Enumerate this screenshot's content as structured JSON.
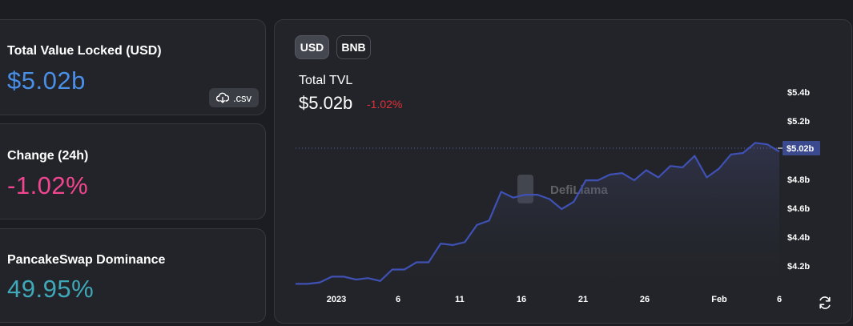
{
  "stats": {
    "tvl": {
      "label": "Total Value Locked (USD)",
      "value": "$5.02b",
      "color": "#4a8fe7",
      "csv_label": ".csv"
    },
    "change": {
      "label": "Change (24h)",
      "value": "-1.02%",
      "color": "#f0458f"
    },
    "dominance": {
      "label": "PancakeSwap Dominance",
      "value": "49.95%",
      "color": "#3fa9b9"
    }
  },
  "chart": {
    "toggles": {
      "usd": "USD",
      "bnb": "BNB"
    },
    "selected_toggle": "USD",
    "title": "Total TVL",
    "value": "$5.02b",
    "change": "-1.02%",
    "change_color": "#e0303a",
    "watermark": "DefiLlama",
    "current_marker_label": "$5.02b",
    "refresh_icon": "refresh-icon",
    "line_color": "#3f51b5"
  },
  "chart_data": {
    "type": "area",
    "x_tick_labels": [
      "2023",
      "6",
      "11",
      "16",
      "21",
      "26",
      "Feb",
      "6"
    ],
    "y_tick_labels": [
      "$4.2b",
      "$4.4b",
      "$4.6b",
      "$4.8b",
      "$5.02b",
      "$5.2b",
      "$5.4b"
    ],
    "ylim": [
      4.08,
      5.5
    ],
    "grid": false,
    "series": [
      {
        "values": [
          4.1,
          4.1,
          4.11,
          4.15,
          4.15,
          4.13,
          4.14,
          4.12,
          4.2,
          4.2,
          4.25,
          4.25,
          4.38,
          4.37,
          4.39,
          4.51,
          4.54,
          4.74,
          4.7,
          4.72,
          4.72,
          4.69,
          4.62,
          4.67,
          4.82,
          4.82,
          4.86,
          4.87,
          4.82,
          4.89,
          4.84,
          4.92,
          4.91,
          4.99,
          4.84,
          4.9,
          5.0,
          5.01,
          5.08,
          5.07,
          5.02
        ]
      }
    ]
  }
}
